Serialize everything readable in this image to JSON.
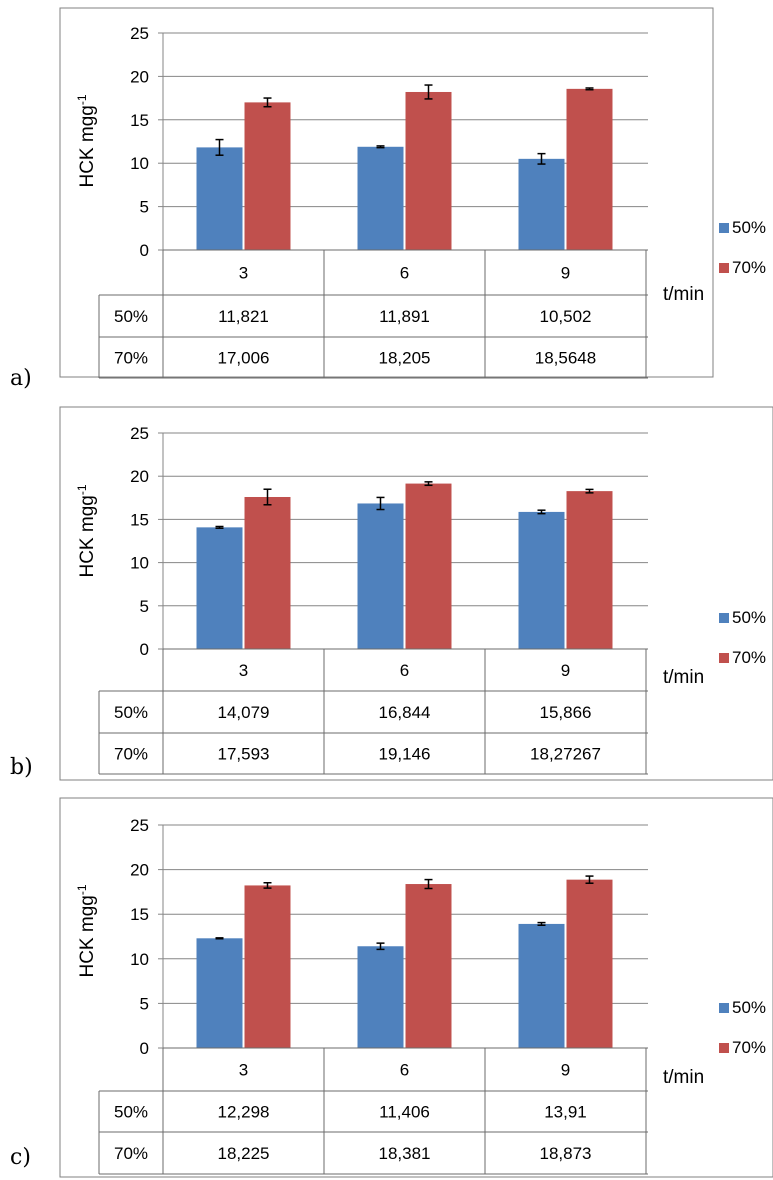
{
  "colors": {
    "s50": "#4f81bd",
    "s70": "#c0504d",
    "grid": "#868686",
    "frame": "#808080",
    "table": "#6b6b6b",
    "err": "#000000"
  },
  "chart_data": [
    {
      "type": "bar",
      "panel": "a)",
      "ylabel_main": "HCK mgg",
      "ylabel_sup": "-1",
      "xlabel": "t/min",
      "ylim": [
        0,
        25
      ],
      "yticks": [
        "0",
        "5",
        "10",
        "15",
        "20",
        "25"
      ],
      "categories": [
        "3",
        "6",
        "9"
      ],
      "series": [
        {
          "name": "50%",
          "values": [
            11.821,
            11.891,
            10.502
          ],
          "errors": [
            0.9,
            0.1,
            0.6
          ],
          "labels": [
            "11,821",
            "11,891",
            "10,502"
          ]
        },
        {
          "name": "70%",
          "values": [
            17.006,
            18.205,
            18.5648
          ],
          "errors": [
            0.5,
            0.8,
            0.1
          ],
          "labels": [
            "17,006",
            "18,205",
            "18,5648"
          ]
        }
      ]
    },
    {
      "type": "bar",
      "panel": "b)",
      "ylabel_main": "HCK mgg",
      "ylabel_sup": "-1",
      "xlabel": "t/min",
      "ylim": [
        0,
        25
      ],
      "yticks": [
        "0",
        "5",
        "10",
        "15",
        "20",
        "25"
      ],
      "categories": [
        "3",
        "6",
        "9"
      ],
      "series": [
        {
          "name": "50%",
          "values": [
            14.079,
            16.844,
            15.866
          ],
          "errors": [
            0.1,
            0.7,
            0.2
          ],
          "labels": [
            "14,079",
            "16,844",
            "15,866"
          ]
        },
        {
          "name": "70%",
          "values": [
            17.593,
            19.146,
            18.27267
          ],
          "errors": [
            0.9,
            0.2,
            0.2
          ],
          "labels": [
            "17,593",
            "19,146",
            "18,27267"
          ]
        }
      ]
    },
    {
      "type": "bar",
      "panel": "c)",
      "ylabel_main": "HCK mgg",
      "ylabel_sup": "-1",
      "xlabel": "t/min",
      "ylim": [
        0,
        25
      ],
      "yticks": [
        "0",
        "5",
        "10",
        "15",
        "20",
        "25"
      ],
      "categories": [
        "3",
        "6",
        "9"
      ],
      "series": [
        {
          "name": "50%",
          "values": [
            12.298,
            11.406,
            13.91
          ],
          "errors": [
            0.05,
            0.35,
            0.15
          ],
          "labels": [
            "12,298",
            "11,406",
            "13,91"
          ]
        },
        {
          "name": "70%",
          "values": [
            18.225,
            18.381,
            18.873
          ],
          "errors": [
            0.3,
            0.5,
            0.4
          ],
          "labels": [
            "18,225",
            "18,381",
            "18,873"
          ]
        }
      ]
    }
  ]
}
